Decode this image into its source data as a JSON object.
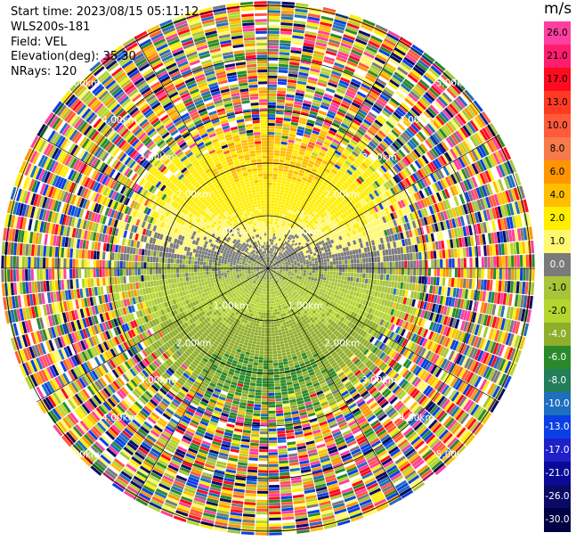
{
  "header": {
    "start_time": "Start time: 2023/08/15 05:11:12",
    "instrument": "WLS200s-181",
    "field": "Field: VEL",
    "elevation": "Elevation(deg): 35.30",
    "nrays": "NRays: 120"
  },
  "colorbar": {
    "unit": "m/s",
    "ticks": [
      "26.0",
      "21.0",
      "17.0",
      "13.0",
      "10.0",
      "8.0",
      "6.0",
      "4.0",
      "2.0",
      "1.0",
      "0.0",
      "-1.0",
      "-2.0",
      "-4.0",
      "-6.0",
      "-8.0",
      "-10.0",
      "-13.0",
      "-17.0",
      "-21.0",
      "-26.0",
      "-30.0"
    ],
    "colors": [
      "#ff3fa0",
      "#ff1e6e",
      "#ff0a1e",
      "#ff3a22",
      "#ff5a3a",
      "#f77a4a",
      "#ff9500",
      "#ffbf00",
      "#ffee00",
      "#fff870",
      "#7a7a7a",
      "#a8c53a",
      "#b5d52f",
      "#8fae2a",
      "#2a8a2a",
      "#227d5a",
      "#1e6fbf",
      "#0a3fe6",
      "#2020c8",
      "#0a0a99",
      "#0a0a66",
      "#000044"
    ]
  },
  "chart_data": {
    "type": "heatmap",
    "projection": "polar PPI",
    "title": "",
    "field": "VEL",
    "unit": "m/s",
    "nrays": 120,
    "elevation_deg": 35.3,
    "range_rings_km": [
      {
        "label": "1.00km",
        "km": 1
      },
      {
        "label": "2.00km",
        "km": 2
      },
      {
        "label": "3.00km",
        "km": 3
      },
      {
        "label": "4.00km",
        "km": 4
      },
      {
        "label": "5.00km",
        "km": 5
      }
    ],
    "color_scale": [
      26,
      21,
      17,
      13,
      10,
      8,
      6,
      4,
      2,
      1,
      0,
      -1,
      -2,
      -4,
      -6,
      -8,
      -10,
      -13,
      -17,
      -21,
      -26,
      -30
    ]
  }
}
